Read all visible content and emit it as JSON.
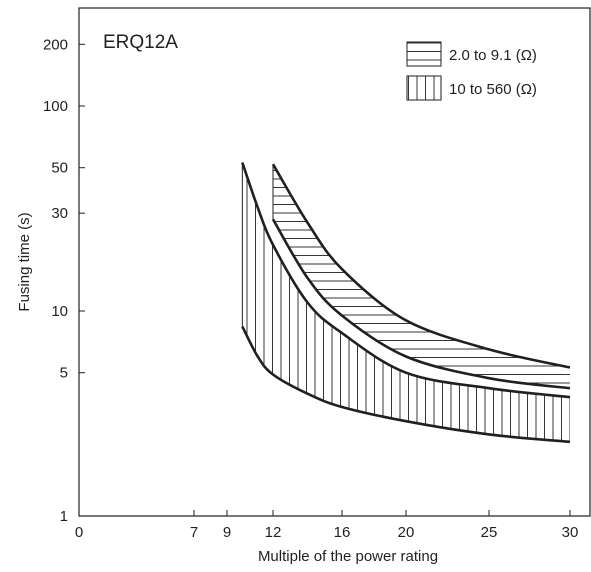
{
  "chart_data": {
    "type": "area",
    "model_label": "ERQ12A",
    "xlabel": "Multiple of the power rating",
    "ylabel": "Fusing time (s)",
    "y_scale": "log",
    "ylim": [
      1,
      300
    ],
    "x_ticks": [
      {
        "value": 0,
        "label": "0"
      },
      {
        "value": 7,
        "label": "7"
      },
      {
        "value": 9,
        "label": "9"
      },
      {
        "value": 12,
        "label": "12"
      },
      {
        "value": 16,
        "label": "16"
      },
      {
        "value": 20,
        "label": "20"
      },
      {
        "value": 25,
        "label": "25"
      },
      {
        "value": 30,
        "label": "30"
      }
    ],
    "y_ticks": [
      {
        "value": 1,
        "label": "1"
      },
      {
        "value": 5,
        "label": "5"
      },
      {
        "value": 10,
        "label": "10"
      },
      {
        "value": 30,
        "label": "30"
      },
      {
        "value": 50,
        "label": "50"
      },
      {
        "value": 100,
        "label": "100"
      },
      {
        "value": 200,
        "label": "200"
      }
    ],
    "grid": false,
    "legend_position": "top-right",
    "series": [
      {
        "name": "2.0 to 9.1 (Ω)",
        "hatch": "horizontal",
        "upper": {
          "x": [
            12,
            14,
            16,
            20,
            25,
            30
          ],
          "y": [
            52,
            27,
            16,
            9,
            6.5,
            5.3
          ]
        },
        "lower": {
          "x": [
            12,
            14,
            16,
            20,
            25,
            30
          ],
          "y": [
            28,
            14.5,
            9.5,
            6,
            4.7,
            4.2
          ]
        }
      },
      {
        "name": "10 to 560 (Ω)",
        "hatch": "vertical",
        "upper": {
          "x": [
            10,
            11,
            12,
            14,
            16,
            20,
            25,
            30
          ],
          "y": [
            53,
            32,
            21,
            11,
            7.8,
            5,
            4.2,
            3.8
          ]
        },
        "lower": {
          "x": [
            10,
            11,
            12,
            14,
            16,
            20,
            25,
            30
          ],
          "y": [
            8.4,
            6,
            4.9,
            3.95,
            3.4,
            2.9,
            2.5,
            2.3
          ]
        }
      }
    ]
  }
}
